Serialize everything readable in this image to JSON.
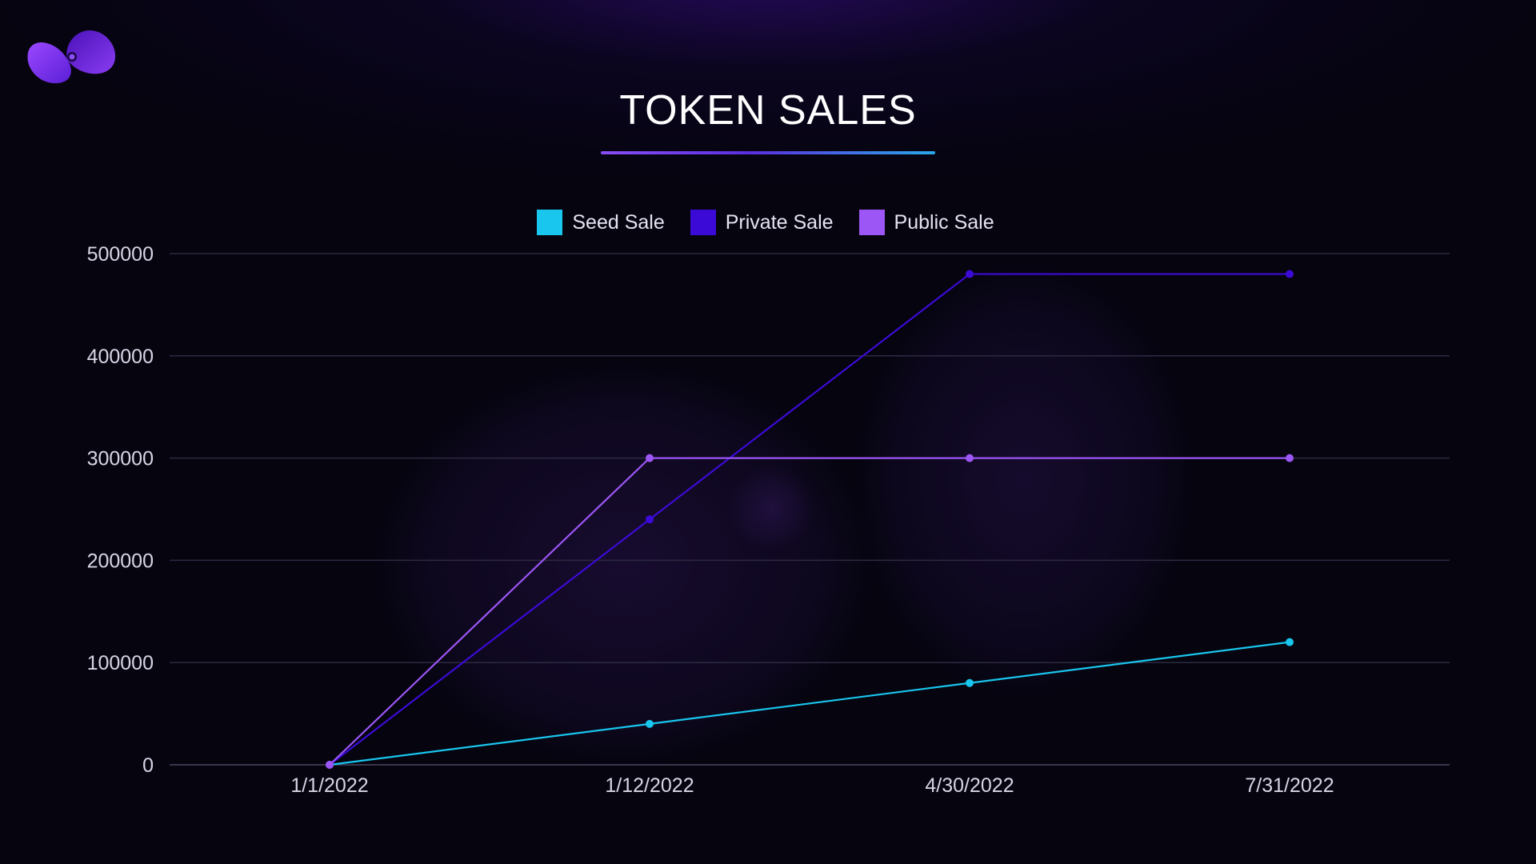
{
  "slide": {
    "title": "TOKEN SALES",
    "background": "#05040f",
    "accent_gradient": [
      "#8a4df5",
      "#5b2fe0",
      "#2aa8e8"
    ]
  },
  "logo": {
    "icon": "swirl-logo-icon",
    "colors": [
      "#6a2ee8",
      "#8b3df5",
      "#3b0f9e"
    ]
  },
  "chart_data": {
    "type": "line",
    "title": "TOKEN SALES",
    "xlabel": "",
    "ylabel": "",
    "categories": [
      "1/1/2022",
      "1/12/2022",
      "4/30/2022",
      "7/31/2022"
    ],
    "ylim": [
      0,
      500000
    ],
    "yticks": [
      0,
      100000,
      200000,
      300000,
      400000,
      500000
    ],
    "grid": true,
    "legend_position": "top-center",
    "series": [
      {
        "name": "Seed Sale",
        "color": "#19c6ee",
        "values": [
          0,
          40000,
          80000,
          120000
        ]
      },
      {
        "name": "Private Sale",
        "color": "#3c0ad6",
        "values": [
          0,
          240000,
          480000,
          480000
        ]
      },
      {
        "name": "Public Sale",
        "color": "#9c56f5",
        "values": [
          0,
          300000,
          300000,
          300000
        ]
      }
    ]
  }
}
